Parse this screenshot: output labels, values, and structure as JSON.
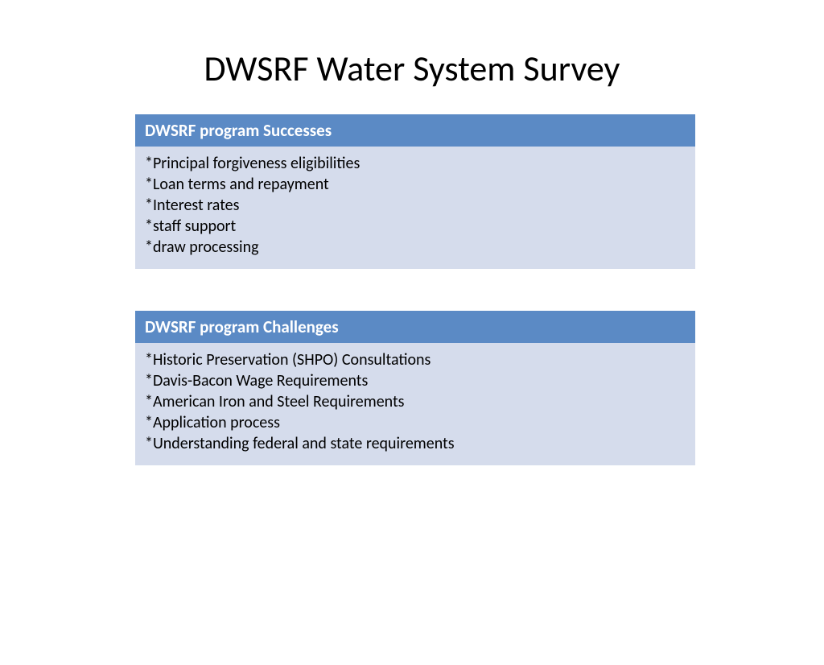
{
  "slide": {
    "title": "DWSRF Water System Survey",
    "background_color": "#ffffff"
  },
  "panels": [
    {
      "header": "DWSRF program Successes",
      "items": [
        "*Principal forgiveness eligibilities",
        "*Loan terms and repayment",
        "*Interest rates",
        "*staff support",
        "*draw processing"
      ]
    },
    {
      "header": "DWSRF program Challenges",
      "items": [
        "*Historic Preservation (SHPO) Consultations",
        "*Davis-Bacon Wage Requirements",
        "*American Iron and Steel Requirements",
        "*Application process",
        "*Understanding federal and state requirements"
      ]
    }
  ],
  "styling": {
    "title_fontsize": 44,
    "title_color": "#000000",
    "header_bg": "#5b8ac5",
    "header_color": "#ffffff",
    "header_fontsize": 21,
    "body_bg": "#d5dcec",
    "body_color": "#000000",
    "body_fontsize": 20
  }
}
